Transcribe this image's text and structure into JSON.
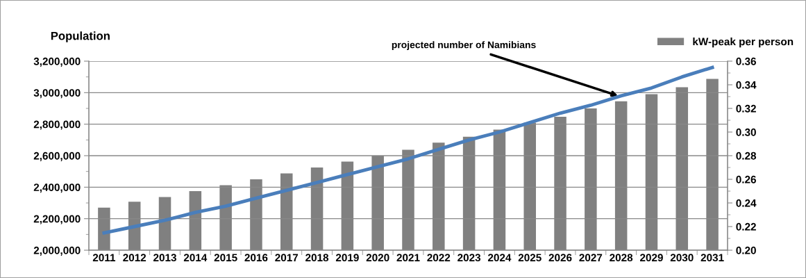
{
  "chart_data": {
    "type": "bar",
    "ylabel": "Population",
    "categories": [
      "2011",
      "2012",
      "2013",
      "2014",
      "2015",
      "2016",
      "2017",
      "2018",
      "2019",
      "2020",
      "2021",
      "2022",
      "2023",
      "2024",
      "2025",
      "2026",
      "2027",
      "2028",
      "2029",
      "2030",
      "2031"
    ],
    "series": [
      {
        "name": "kW-peak per person",
        "axis": "y2",
        "color": "#808080",
        "values": [
          0.236,
          0.241,
          0.245,
          0.25,
          0.255,
          0.26,
          0.265,
          0.27,
          0.275,
          0.28,
          0.285,
          0.291,
          0.296,
          0.302,
          0.308,
          0.313,
          0.32,
          0.326,
          0.332,
          0.338,
          0.345
        ]
      },
      {
        "type": "line",
        "color": "#4a7ebb",
        "values": [
          2110000,
          2150000,
          2190000,
          2240000,
          2280000,
          2330000,
          2380000,
          2430000,
          2480000,
          2530000,
          2580000,
          2640000,
          2700000,
          2750000,
          2810000,
          2870000,
          2920000,
          2980000,
          3030000,
          3100000,
          3160000
        ]
      }
    ],
    "ylim": [
      2000000,
      3200000
    ],
    "yticks": [
      {
        "value": 2000000,
        "label": "2,000,000"
      },
      {
        "value": 2200000,
        "label": "2,200,000"
      },
      {
        "value": 2400000,
        "label": "2,400,000"
      },
      {
        "value": 2600000,
        "label": "2,600,000"
      },
      {
        "value": 2800000,
        "label": "2,800,000"
      },
      {
        "value": 3000000,
        "label": "3,000,000"
      },
      {
        "value": 3200000,
        "label": "3,200,000"
      }
    ],
    "y2lim": [
      0.2,
      0.36
    ],
    "y2ticks": [
      {
        "value": 0.2,
        "label": "0.20"
      },
      {
        "value": 0.22,
        "label": "0.22"
      },
      {
        "value": 0.24,
        "label": "0.24"
      },
      {
        "value": 0.26,
        "label": "0.26"
      },
      {
        "value": 0.28,
        "label": "0.28"
      },
      {
        "value": 0.3,
        "label": "0.30"
      },
      {
        "value": 0.32,
        "label": "0.32"
      },
      {
        "value": 0.34,
        "label": "0.34"
      },
      {
        "value": 0.36,
        "label": "0.36"
      }
    ],
    "annotations": [
      {
        "text": "projected number of Namibians",
        "x": "2028",
        "y": 2980000
      }
    ],
    "grid": "y",
    "legend": "top right",
    "marker": "none",
    "line_style": "solid"
  }
}
